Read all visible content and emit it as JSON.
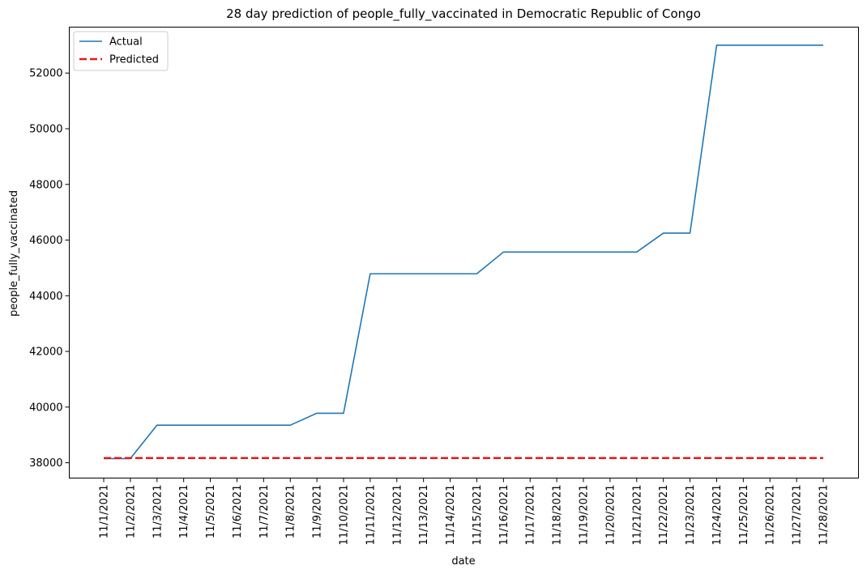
{
  "chart_data": {
    "type": "line",
    "title": "28 day prediction of people_fully_vaccinated in Democratic Republic of Congo",
    "xlabel": "date",
    "ylabel": "people_fully_vaccinated",
    "x": [
      "11/1/2021",
      "11/2/2021",
      "11/3/2021",
      "11/4/2021",
      "11/5/2021",
      "11/6/2021",
      "11/7/2021",
      "11/8/2021",
      "11/9/2021",
      "11/10/2021",
      "11/11/2021",
      "11/12/2021",
      "11/13/2021",
      "11/14/2021",
      "11/15/2021",
      "11/16/2021",
      "11/17/2021",
      "11/18/2021",
      "11/19/2021",
      "11/20/2021",
      "11/21/2021",
      "11/22/2021",
      "11/23/2021",
      "11/24/2021",
      "11/25/2021",
      "11/26/2021",
      "11/27/2021",
      "11/28/2021"
    ],
    "yticks": [
      38000,
      40000,
      42000,
      44000,
      46000,
      48000,
      50000,
      52000
    ],
    "ylim": [
      37450,
      53650
    ],
    "grid": false,
    "legend_position": "top-left",
    "series": [
      {
        "name": "Actual",
        "color": "#1f77b4",
        "style": "solid",
        "values": [
          38150,
          38150,
          39350,
          39350,
          39350,
          39350,
          39350,
          39350,
          39780,
          39780,
          44790,
          44790,
          44790,
          44790,
          44790,
          45570,
          45570,
          45570,
          45570,
          45570,
          45570,
          46250,
          46250,
          53000,
          53000,
          53000,
          53000,
          53000
        ]
      },
      {
        "name": "Predicted",
        "color": "#e31a1c",
        "style": "dashed",
        "values": [
          38170,
          38170,
          38170,
          38170,
          38170,
          38170,
          38170,
          38170,
          38170,
          38170,
          38170,
          38170,
          38170,
          38170,
          38170,
          38170,
          38170,
          38170,
          38170,
          38170,
          38170,
          38170,
          38170,
          38170,
          38170,
          38170,
          38170,
          38170
        ]
      }
    ]
  }
}
